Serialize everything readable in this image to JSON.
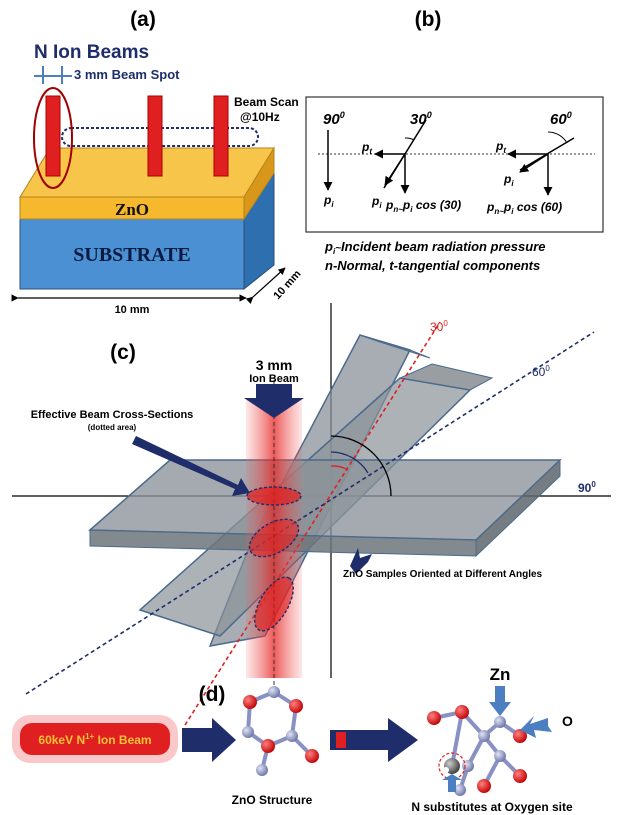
{
  "panel_labels": {
    "a": "(a)",
    "b": "(b)",
    "c": "(c)",
    "d": "(d)"
  },
  "panel_a": {
    "title": "N Ion Beams",
    "beam_spot": "3 mm Beam Spot",
    "beam_scan_line1": "Beam Scan",
    "beam_scan_line2": "@10Hz",
    "film_label": "ZnO",
    "substrate_label": "SUBSTRATE",
    "width_label": "10 mm",
    "depth_label": "10 mm"
  },
  "panel_b": {
    "angle_90": "90",
    "angle_30": "30",
    "angle_60": "60",
    "deg": "0",
    "p": "p",
    "t_sub": "t",
    "i_sub": "i",
    "normal_30": "p",
    "normal_suffix_30": "n~",
    "cos30": "cos (30)",
    "cos60": "cos (60)",
    "note_pi": "Incident beam radiation pressure",
    "note_pi_prefix": "~",
    "note_components": "n-Normal, t-tangential components"
  },
  "panel_c": {
    "ion_beam_line1": "3 mm",
    "ion_beam_line2": "Ion Beam",
    "cross_sections": "Effective Beam Cross-Sections",
    "dotted_area": "(dotted area)",
    "angle_30": "30",
    "angle_60": "60",
    "angle_90": "90",
    "deg": "0",
    "samples_label": "ZnO Samples Oriented at Different Angles"
  },
  "panel_d": {
    "ion_beam": "60keV N",
    "ion_sup": "1+",
    "ion_suffix": " Ion Beam",
    "structure_label": "ZnO Structure",
    "substitution_label": "N substitutes at Oxygen site",
    "zn_label": "Zn",
    "o_label": "O"
  },
  "colors": {
    "navy": "#1f2d6b",
    "beam_red": "#e02020",
    "film_orange": "#f6b82c",
    "substrate_blue": "#4a90d2",
    "panel_gray": "#8a9298",
    "arrow_blue": "#4c7fc2"
  }
}
